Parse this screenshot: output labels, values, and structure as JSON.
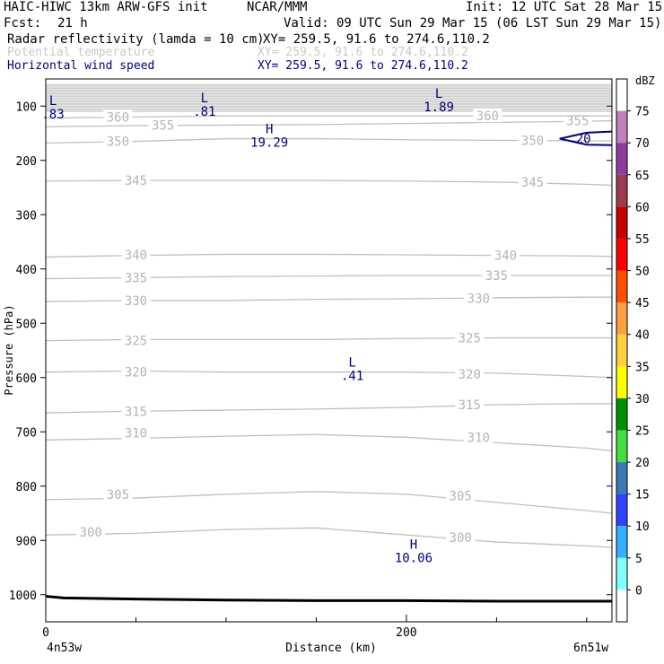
{
  "header": {
    "model": "HAIC-HIWC 13km ARW-GFS init",
    "org": "NCAR/MMM",
    "init": "Init: 12 UTC Sat 28 Mar 15",
    "fcst_label": "Fcst:",
    "fcst_value": "21 h",
    "valid": "Valid: 09 UTC Sun 29 Mar 15 (06 LST Sun 29 Mar 15)",
    "fields": [
      {
        "name": "Radar reflectivity (lamda = 10 cm)",
        "xy": "XY= 259.5, 91.6 to 274.6,110.2",
        "color": "#000000"
      },
      {
        "name": "Potential temperature",
        "xy": "XY= 259.5, 91.6 to 274.6,110.2",
        "color": "#c8c8c8"
      },
      {
        "name": "Horizontal wind speed",
        "xy": "XY= 259.5, 91.6 to 274.6,110.2",
        "color": "#00007a"
      }
    ]
  },
  "colorbar": {
    "unit": "dBZ",
    "labels": [
      "75",
      "70",
      "65",
      "60",
      "55",
      "50",
      "45",
      "40",
      "35",
      "30",
      "25",
      "20",
      "15",
      "10",
      "5",
      "0"
    ],
    "colors": [
      "#ffffff",
      "#c080c0",
      "#8c3c9c",
      "#9c3c50",
      "#c80000",
      "#ff0000",
      "#ff5000",
      "#ffa040",
      "#ffd040",
      "#ffff00",
      "#009000",
      "#40e040",
      "#3c78b4",
      "#3040ff",
      "#30b0ff",
      "#80ffff",
      "#ffffff"
    ]
  },
  "chart_data": {
    "type": "contour",
    "xlabel": "Distance (km)",
    "ylabel": "Pressure (hPa)",
    "xlim": [
      0,
      314
    ],
    "ylim": [
      1050,
      50
    ],
    "x_ticks": [
      "0",
      "200"
    ],
    "x_tick_values": [
      0,
      200
    ],
    "x_minor_ticks": [
      50,
      100,
      150,
      250,
      300
    ],
    "x_end_labels": [
      "4n53w",
      "6n51w"
    ],
    "y_ticks": [
      "100",
      "200",
      "300",
      "400",
      "500",
      "600",
      "700",
      "800",
      "900",
      "1000"
    ],
    "y_tick_values": [
      100,
      200,
      300,
      400,
      500,
      600,
      700,
      800,
      900,
      1000
    ],
    "grid": false,
    "theta_contours": [
      {
        "value": 300,
        "label": "300",
        "x": [
          0,
          50,
          100,
          150,
          200,
          250,
          300,
          314
        ],
        "p": [
          890,
          887,
          880,
          877,
          890,
          903,
          910,
          913
        ],
        "label_at": [
          [
            25,
            885
          ],
          [
            230,
            895
          ]
        ]
      },
      {
        "value": 305,
        "label": "305",
        "x": [
          0,
          50,
          100,
          150,
          200,
          250,
          300,
          314
        ],
        "p": [
          825,
          822,
          815,
          810,
          815,
          830,
          845,
          850
        ],
        "label_at": [
          [
            40,
            815
          ],
          [
            230,
            818
          ]
        ]
      },
      {
        "value": 310,
        "label": "310",
        "x": [
          0,
          50,
          100,
          150,
          200,
          250,
          300,
          314
        ],
        "p": [
          715,
          712,
          708,
          705,
          710,
          720,
          730,
          735
        ],
        "label_at": [
          [
            50,
            702
          ],
          [
            240,
            710
          ]
        ]
      },
      {
        "value": 315,
        "label": "315",
        "x": [
          0,
          50,
          100,
          150,
          200,
          250,
          300,
          314
        ],
        "p": [
          665,
          662,
          660,
          658,
          655,
          650,
          648,
          648
        ],
        "label_at": [
          [
            50,
            662
          ],
          [
            235,
            650
          ]
        ]
      },
      {
        "value": 320,
        "label": "320",
        "x": [
          0,
          50,
          100,
          150,
          200,
          250,
          300,
          314
        ],
        "p": [
          590,
          588,
          590,
          590,
          590,
          592,
          598,
          600
        ],
        "label_at": [
          [
            50,
            590
          ],
          [
            235,
            594
          ]
        ]
      },
      {
        "value": 325,
        "label": "325",
        "x": [
          0,
          50,
          100,
          150,
          200,
          250,
          300,
          314
        ],
        "p": [
          532,
          530,
          530,
          530,
          528,
          527,
          527,
          527
        ],
        "label_at": [
          [
            50,
            532
          ],
          [
            235,
            527
          ]
        ]
      },
      {
        "value": 330,
        "label": "330",
        "x": [
          0,
          50,
          100,
          150,
          200,
          250,
          300,
          314
        ],
        "p": [
          460,
          458,
          458,
          456,
          455,
          453,
          452,
          452
        ],
        "label_at": [
          [
            50,
            458
          ],
          [
            240,
            454
          ]
        ]
      },
      {
        "value": 335,
        "label": "335",
        "x": [
          0,
          50,
          100,
          150,
          200,
          250,
          300,
          314
        ],
        "p": [
          418,
          416,
          414,
          413,
          412,
          412,
          412,
          412
        ],
        "label_at": [
          [
            50,
            416
          ],
          [
            250,
            412
          ]
        ]
      },
      {
        "value": 340,
        "label": "340",
        "x": [
          0,
          50,
          100,
          150,
          200,
          250,
          300,
          314
        ],
        "p": [
          378,
          375,
          373,
          373,
          374,
          375,
          376,
          377
        ],
        "label_at": [
          [
            50,
            374
          ],
          [
            255,
            375
          ]
        ]
      },
      {
        "value": 345,
        "label": "345",
        "x": [
          0,
          50,
          100,
          150,
          200,
          250,
          300,
          314
        ],
        "p": [
          238,
          237,
          237,
          237,
          238,
          240,
          244,
          246
        ],
        "label_at": [
          [
            50,
            237
          ],
          [
            270,
            240
          ]
        ]
      },
      {
        "value": 350,
        "label": "350",
        "x": [
          0,
          50,
          100,
          150,
          200,
          250,
          300,
          314
        ],
        "p": [
          168,
          165,
          160,
          160,
          162,
          163,
          164,
          164
        ],
        "label_at": [
          [
            40,
            165
          ],
          [
            270,
            163
          ]
        ]
      },
      {
        "value": 355,
        "label": "355",
        "x": [
          0,
          50,
          100,
          150,
          200,
          250,
          300,
          314
        ],
        "p": [
          138,
          136,
          135,
          134,
          132,
          130,
          128,
          127
        ],
        "label_at": [
          [
            65,
            135
          ],
          [
            295,
            127
          ]
        ]
      },
      {
        "value": 360,
        "label": "360",
        "x": [
          0,
          50,
          100,
          150,
          200,
          250,
          300,
          314
        ],
        "p": [
          122,
          120,
          118,
          118,
          118,
          118,
          118,
          118
        ],
        "label_at": [
          [
            40,
            120
          ],
          [
            245,
            118
          ]
        ]
      }
    ],
    "theta_stratosphere_band": [
      60,
      110
    ],
    "wind_contours": [
      {
        "value": 20,
        "label": "20",
        "x": [
          314,
          300,
          285,
          300,
          314
        ],
        "p": [
          172,
          171,
          160,
          149,
          147
        ],
        "label_at": [
          [
            287,
            160
          ]
        ]
      }
    ],
    "terrain": {
      "x": [
        0,
        10,
        50,
        100,
        150,
        200,
        250,
        314
      ],
      "p": [
        1003,
        1006,
        1008,
        1010,
        1011,
        1011,
        1012,
        1012
      ]
    },
    "extrema": [
      {
        "kind": "L",
        "value": ".83",
        "x": 4,
        "p": 98
      },
      {
        "kind": "L",
        "value": ".81",
        "x": 88,
        "p": 93
      },
      {
        "kind": "L",
        "value": "1.89",
        "x": 218,
        "p": 85
      },
      {
        "kind": "H",
        "value": "19.29",
        "x": 124,
        "p": 150
      },
      {
        "kind": "L",
        "value": ".41",
        "x": 170,
        "p": 580
      },
      {
        "kind": "H",
        "value": "10.06",
        "x": 204,
        "p": 915
      }
    ]
  }
}
